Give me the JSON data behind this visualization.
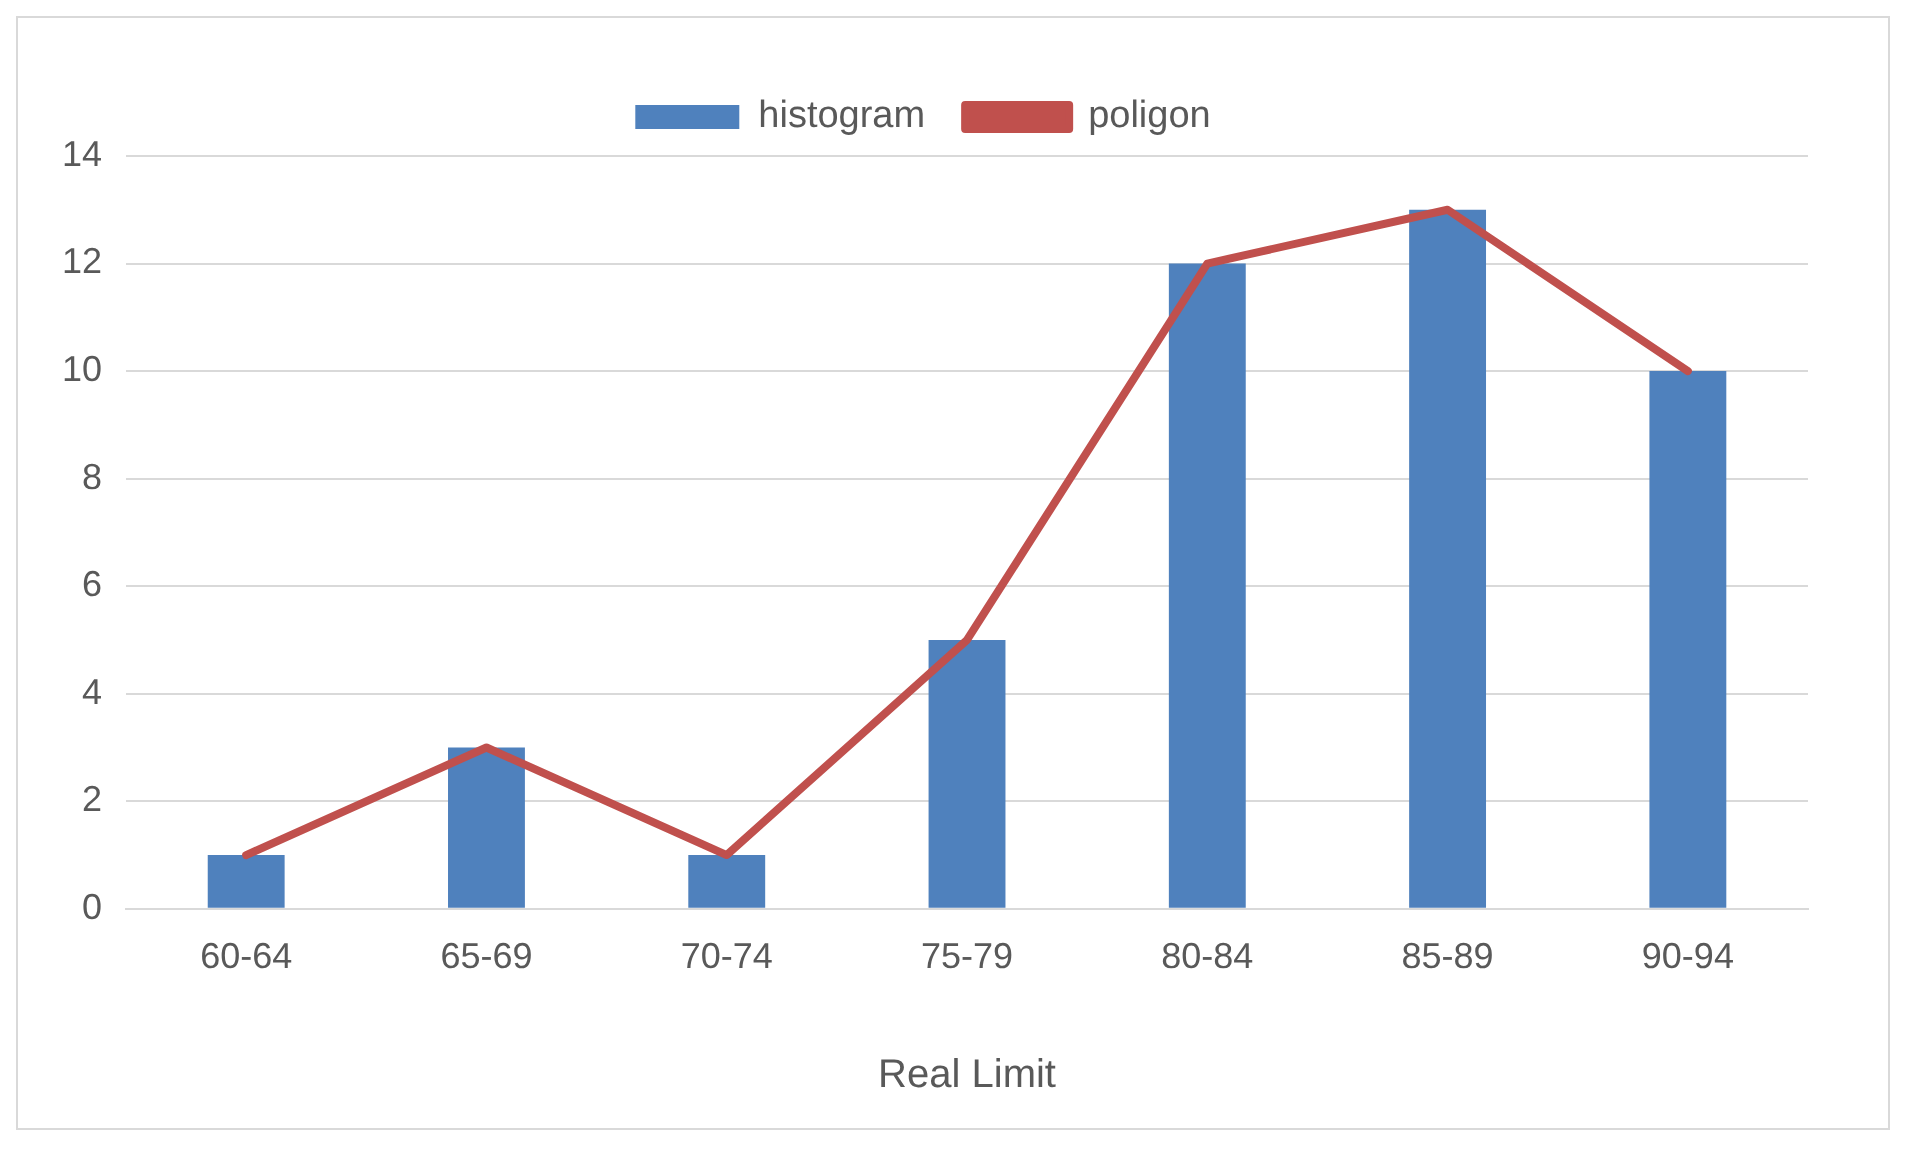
{
  "chart_data": {
    "type": "bar",
    "categories": [
      "60-64",
      "65-69",
      "70-74",
      "75-79",
      "80-84",
      "85-89",
      "90-94"
    ],
    "series": [
      {
        "name": "histogram",
        "color": "#4f81bd",
        "values": [
          1,
          3,
          1,
          5,
          12,
          13,
          10
        ]
      },
      {
        "name": "poligon",
        "type": "line",
        "color": "#c0504d",
        "values": [
          1,
          3,
          1,
          5,
          12,
          13,
          10
        ]
      }
    ],
    "xlabel": "Real Limit",
    "ylim": [
      0,
      14
    ],
    "yticks": [
      0,
      2,
      4,
      6,
      8,
      10,
      12,
      14
    ],
    "grid": "y",
    "legend": "top",
    "marker": "none"
  }
}
